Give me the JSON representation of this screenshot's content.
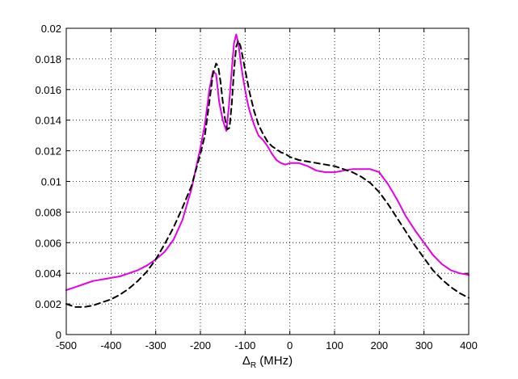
{
  "chart_data": {
    "type": "line",
    "xlabel": "Δ",
    "xlabel_subscript": "R",
    "xlabel_unit": " (MHz)",
    "ylabel": "",
    "xlim": [
      -500,
      400
    ],
    "ylim": [
      0,
      0.02
    ],
    "grid": true,
    "xticks": [
      -500,
      -400,
      -300,
      -200,
      -100,
      0,
      100,
      200,
      300,
      400
    ],
    "xtick_labels": [
      "-500",
      "-400",
      "-300",
      "-200",
      "-100",
      "0",
      "100",
      "200",
      "300",
      "400"
    ],
    "yticks": [
      0,
      0.002,
      0.004,
      0.006,
      0.008,
      0.01,
      0.012,
      0.014,
      0.016,
      0.018,
      0.02
    ],
    "ytick_labels": [
      "0",
      "0.002",
      "0.004",
      "0.006",
      "0.008",
      "0.01",
      "0.012",
      "0.014",
      "0.016",
      "0.018",
      "0.02"
    ],
    "series": [
      {
        "color": "#e600e6",
        "style": "solid",
        "x": [
          -500,
          -480,
          -460,
          -440,
          -420,
          -400,
          -380,
          -360,
          -340,
          -320,
          -300,
          -280,
          -260,
          -240,
          -220,
          -200,
          -190,
          -180,
          -172,
          -165,
          -158,
          -150,
          -142,
          -136,
          -130,
          -125,
          -120,
          -115,
          -110,
          -105,
          -100,
          -95,
          -90,
          -80,
          -70,
          -60,
          -50,
          -40,
          -30,
          -20,
          -10,
          0,
          20,
          40,
          60,
          80,
          100,
          120,
          140,
          160,
          180,
          200,
          220,
          240,
          260,
          280,
          300,
          320,
          340,
          360,
          380,
          400
        ],
        "y": [
          0.0029,
          0.0031,
          0.0033,
          0.0035,
          0.0036,
          0.0037,
          0.0038,
          0.004,
          0.0042,
          0.0045,
          0.0049,
          0.0054,
          0.0062,
          0.0075,
          0.0095,
          0.0122,
          0.0137,
          0.016,
          0.0172,
          0.017,
          0.0152,
          0.014,
          0.0133,
          0.015,
          0.0172,
          0.019,
          0.0196,
          0.019,
          0.0178,
          0.0168,
          0.016,
          0.0152,
          0.0146,
          0.0137,
          0.013,
          0.0127,
          0.0123,
          0.0118,
          0.0114,
          0.0112,
          0.0111,
          0.0112,
          0.0112,
          0.011,
          0.0107,
          0.0106,
          0.0106,
          0.0107,
          0.0108,
          0.0108,
          0.0108,
          0.0106,
          0.0098,
          0.0088,
          0.0077,
          0.0068,
          0.006,
          0.0052,
          0.0046,
          0.0042,
          0.004,
          0.0039
        ]
      },
      {
        "color": "#000000",
        "style": "dashed",
        "x": [
          -500,
          -480,
          -460,
          -440,
          -420,
          -400,
          -380,
          -360,
          -340,
          -320,
          -300,
          -280,
          -260,
          -240,
          -220,
          -200,
          -190,
          -180,
          -172,
          -165,
          -160,
          -155,
          -150,
          -145,
          -140,
          -135,
          -130,
          -125,
          -120,
          -115,
          -110,
          -100,
          -90,
          -80,
          -70,
          -60,
          -50,
          -40,
          -30,
          -20,
          -10,
          0,
          20,
          40,
          60,
          80,
          100,
          120,
          140,
          160,
          180,
          200,
          220,
          240,
          260,
          280,
          300,
          320,
          340,
          360,
          380,
          400
        ],
        "y": [
          0.002,
          0.0018,
          0.0018,
          0.0019,
          0.0021,
          0.0023,
          0.0026,
          0.003,
          0.0035,
          0.0041,
          0.0049,
          0.0059,
          0.007,
          0.0083,
          0.0097,
          0.0118,
          0.013,
          0.0152,
          0.017,
          0.0177,
          0.0175,
          0.0165,
          0.0152,
          0.0141,
          0.0134,
          0.0135,
          0.015,
          0.0172,
          0.0188,
          0.0192,
          0.0188,
          0.0173,
          0.0158,
          0.0146,
          0.0137,
          0.0131,
          0.0126,
          0.0123,
          0.0121,
          0.0119,
          0.0118,
          0.0116,
          0.0114,
          0.0113,
          0.0112,
          0.0111,
          0.011,
          0.0108,
          0.0106,
          0.0103,
          0.0099,
          0.0093,
          0.0085,
          0.0076,
          0.0067,
          0.0058,
          0.005,
          0.0042,
          0.0036,
          0.0031,
          0.0027,
          0.0024
        ]
      }
    ]
  }
}
